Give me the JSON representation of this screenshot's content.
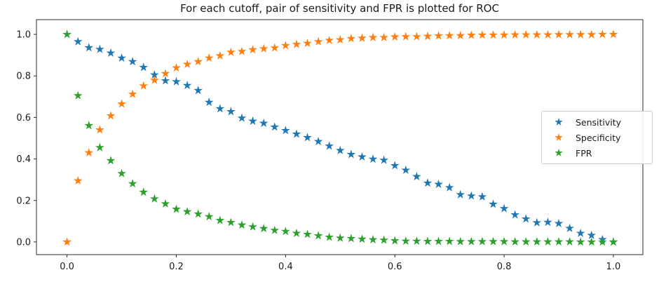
{
  "chart_data": {
    "type": "scatter",
    "marker": "star",
    "title": "For each cutoff, pair of sensitivity and FPR is plotted for ROC",
    "xlabel": "",
    "ylabel": "",
    "grid": false,
    "legend_position": "center right",
    "xlim": [
      -0.056,
      1.054
    ],
    "ylim": [
      -0.061,
      1.071
    ],
    "x_ticks": [
      0.0,
      0.2,
      0.4,
      0.6,
      0.8,
      1.0
    ],
    "x_tick_labels": [
      "0.0",
      "0.2",
      "0.4",
      "0.6",
      "0.8",
      "1.0"
    ],
    "y_ticks": [
      0.0,
      0.2,
      0.4,
      0.6,
      0.8,
      1.0
    ],
    "y_tick_labels": [
      "0.0",
      "0.2",
      "0.4",
      "0.6",
      "0.8",
      "1.0"
    ],
    "axis_color": "#2b2b2b",
    "tick_label_color": "#1a1a1a",
    "x": [
      0.0,
      0.02,
      0.04,
      0.06,
      0.08,
      0.1,
      0.12,
      0.14,
      0.16,
      0.18,
      0.2,
      0.22,
      0.24,
      0.26,
      0.28,
      0.3,
      0.32,
      0.34,
      0.36,
      0.38,
      0.4,
      0.42,
      0.44,
      0.46,
      0.48,
      0.5,
      0.52,
      0.54,
      0.56,
      0.58,
      0.6,
      0.62,
      0.64,
      0.66,
      0.68,
      0.7,
      0.72,
      0.74,
      0.76,
      0.78,
      0.8,
      0.82,
      0.84,
      0.86,
      0.88,
      0.9,
      0.92,
      0.94,
      0.96,
      0.98,
      1.0
    ],
    "series": [
      {
        "name": "Sensitivity",
        "color": "#1f77b4",
        "values": [
          1.0,
          0.965,
          0.936,
          0.928,
          0.91,
          0.886,
          0.869,
          0.841,
          0.805,
          0.777,
          0.772,
          0.754,
          0.73,
          0.673,
          0.642,
          0.628,
          0.597,
          0.582,
          0.572,
          0.554,
          0.537,
          0.52,
          0.503,
          0.484,
          0.462,
          0.441,
          0.422,
          0.41,
          0.399,
          0.394,
          0.368,
          0.346,
          0.315,
          0.284,
          0.278,
          0.262,
          0.228,
          0.222,
          0.218,
          0.182,
          0.161,
          0.131,
          0.111,
          0.093,
          0.095,
          0.089,
          0.066,
          0.042,
          0.032,
          0.012,
          0.0
        ]
      },
      {
        "name": "Specificity",
        "color": "#ff7f0e",
        "values": [
          0.0,
          0.295,
          0.43,
          0.54,
          0.608,
          0.665,
          0.712,
          0.752,
          0.779,
          0.811,
          0.839,
          0.856,
          0.869,
          0.886,
          0.897,
          0.914,
          0.918,
          0.926,
          0.931,
          0.935,
          0.946,
          0.952,
          0.957,
          0.965,
          0.971,
          0.974,
          0.98,
          0.982,
          0.985,
          0.985,
          0.988,
          0.989,
          0.989,
          0.991,
          0.993,
          0.994,
          0.994,
          0.996,
          0.997,
          0.997,
          0.997,
          0.998,
          0.998,
          0.998,
          0.998,
          0.999,
          0.999,
          0.999,
          0.999,
          1.0,
          1.0
        ]
      },
      {
        "name": "FPR",
        "color": "#2ca02c",
        "values": [
          1.0,
          0.705,
          0.561,
          0.455,
          0.392,
          0.33,
          0.281,
          0.24,
          0.208,
          0.184,
          0.158,
          0.146,
          0.135,
          0.122,
          0.104,
          0.094,
          0.082,
          0.073,
          0.065,
          0.056,
          0.051,
          0.042,
          0.037,
          0.03,
          0.023,
          0.019,
          0.017,
          0.014,
          0.011,
          0.009,
          0.006,
          0.004,
          0.004,
          0.003,
          0.003,
          0.003,
          0.002,
          0.002,
          0.002,
          0.002,
          0.002,
          0.001,
          0.001,
          0.001,
          0.001,
          0.001,
          0.001,
          0.0,
          0.0,
          0.0,
          0.0
        ]
      }
    ]
  }
}
